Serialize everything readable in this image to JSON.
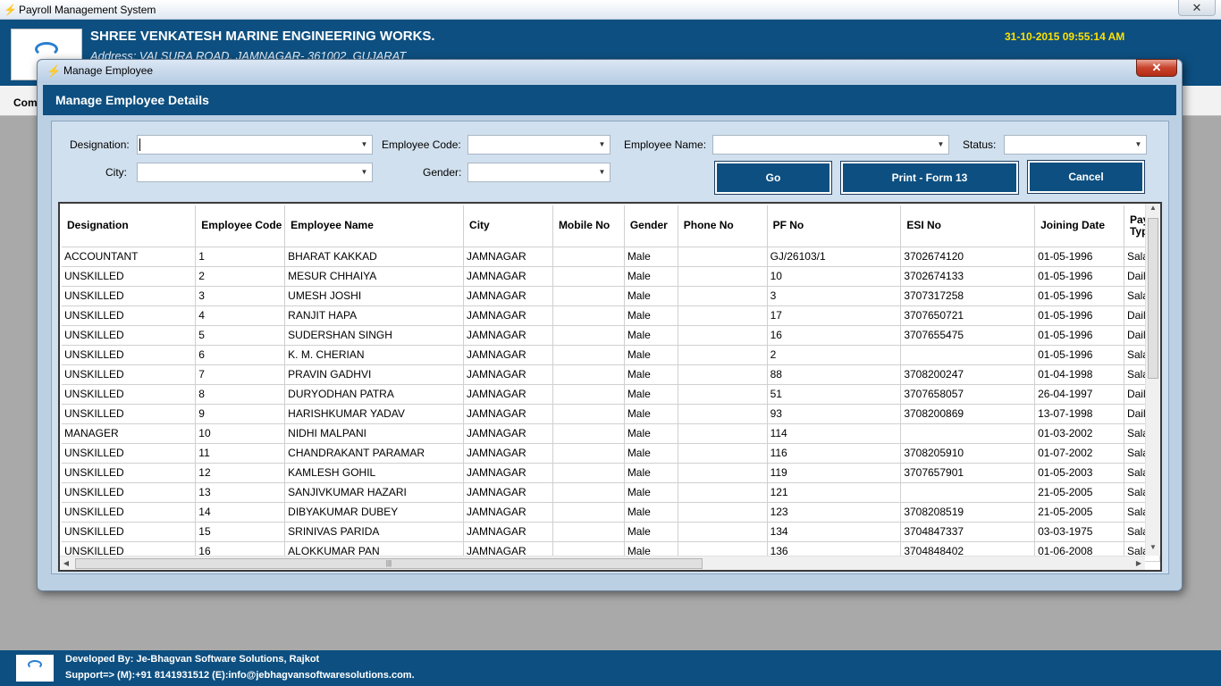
{
  "window": {
    "title": "Payroll Management System"
  },
  "header": {
    "company_name": "SHREE VENKATESH MARINE ENGINEERING WORKS.",
    "address": "Address: VALSURA ROAD, JAMNAGAR- 361002, GUJARAT",
    "datetime": "31-10-2015 09:55:14 AM"
  },
  "menubar": {
    "first_item": "Com"
  },
  "dialog": {
    "title": "Manage Employee",
    "header": "Manage Employee Details",
    "filters": {
      "designation_label": "Designation:",
      "designation_value": "",
      "employee_code_label": "Employee Code:",
      "employee_code_value": "",
      "employee_name_label": "Employee Name:",
      "employee_name_value": "",
      "status_label": "Status:",
      "status_value": "",
      "city_label": "City:",
      "city_value": "",
      "gender_label": "Gender:",
      "gender_value": ""
    },
    "buttons": {
      "go": "Go",
      "print": "Print - Form 13",
      "cancel": "Cancel"
    }
  },
  "grid": {
    "columns": [
      "Designation",
      "Employee Code",
      "Employee Name",
      "City",
      "Mobile No",
      "Gender",
      "Phone No",
      "PF No",
      "ESI No",
      "Joining Date",
      "Pay Type"
    ],
    "rows": [
      [
        "ACCOUNTANT",
        "1",
        "BHARAT KAKKAD",
        "JAMNAGAR",
        "",
        "Male",
        "",
        "GJ/26103/1",
        "3702674120",
        "01-05-1996",
        "Sala"
      ],
      [
        "UNSKILLED",
        "2",
        "MESUR CHHAIYA",
        "JAMNAGAR",
        "",
        "Male",
        "",
        "10",
        "3702674133",
        "01-05-1996",
        "Daily"
      ],
      [
        "UNSKILLED",
        "3",
        "UMESH JOSHI",
        "JAMNAGAR",
        "",
        "Male",
        "",
        "3",
        "3707317258",
        "01-05-1996",
        "Sala"
      ],
      [
        "UNSKILLED",
        "4",
        "RANJIT HAPA",
        "JAMNAGAR",
        "",
        "Male",
        "",
        "17",
        "3707650721",
        "01-05-1996",
        "Daily"
      ],
      [
        "UNSKILLED",
        "5",
        "SUDERSHAN SINGH",
        "JAMNAGAR",
        "",
        "Male",
        "",
        "16",
        "3707655475",
        "01-05-1996",
        "Daily"
      ],
      [
        "UNSKILLED",
        "6",
        "K. M. CHERIAN",
        "JAMNAGAR",
        "",
        "Male",
        "",
        "2",
        "",
        "01-05-1996",
        "Sala"
      ],
      [
        "UNSKILLED",
        "7",
        "PRAVIN GADHVI",
        "JAMNAGAR",
        "",
        "Male",
        "",
        "88",
        "3708200247",
        "01-04-1998",
        "Sala"
      ],
      [
        "UNSKILLED",
        "8",
        "DURYODHAN PATRA",
        "JAMNAGAR",
        "",
        "Male",
        "",
        "51",
        "3707658057",
        "26-04-1997",
        "Daily"
      ],
      [
        "UNSKILLED",
        "9",
        "HARISHKUMAR YADAV",
        "JAMNAGAR",
        "",
        "Male",
        "",
        "93",
        "3708200869",
        "13-07-1998",
        "Daily"
      ],
      [
        "MANAGER",
        "10",
        "NIDHI MALPANI",
        "JAMNAGAR",
        "",
        "Male",
        "",
        "114",
        "",
        "01-03-2002",
        "Sala"
      ],
      [
        "UNSKILLED",
        "11",
        "CHANDRAKANT PARAMAR",
        "JAMNAGAR",
        "",
        "Male",
        "",
        "116",
        "3708205910",
        "01-07-2002",
        "Sala"
      ],
      [
        "UNSKILLED",
        "12",
        "KAMLESH GOHIL",
        "JAMNAGAR",
        "",
        "Male",
        "",
        "119",
        "3707657901",
        "01-05-2003",
        "Sala"
      ],
      [
        "UNSKILLED",
        "13",
        "SANJIVKUMAR HAZARI",
        "JAMNAGAR",
        "",
        "Male",
        "",
        "121",
        "",
        "21-05-2005",
        "Sala"
      ],
      [
        "UNSKILLED",
        "14",
        "DIBYAKUMAR DUBEY",
        "JAMNAGAR",
        "",
        "Male",
        "",
        "123",
        "3708208519",
        "21-05-2005",
        "Sala"
      ],
      [
        "UNSKILLED",
        "15",
        "SRINIVAS PARIDA",
        "JAMNAGAR",
        "",
        "Male",
        "",
        "134",
        "3704847337",
        "03-03-1975",
        "Sala"
      ],
      [
        "UNSKILLED",
        "16",
        "ALOKKUMAR PAN",
        "JAMNAGAR",
        "",
        "Male",
        "",
        "136",
        "3704848402",
        "01-06-2008",
        "Sala"
      ]
    ]
  },
  "footer": {
    "developed_by": "Developed By: Je-Bhagvan Software Solutions, Rajkot",
    "support": "Support=> (M):+91 8141931512 (E):info@jebhagvansoftwaresolutions.com."
  },
  "icons": {
    "app": "lightning-icon",
    "close": "close-icon",
    "dropdown": "chevron-down-icon"
  },
  "colors": {
    "brand_blue": "#0d4f80",
    "datetime_yellow": "#ffe200"
  }
}
